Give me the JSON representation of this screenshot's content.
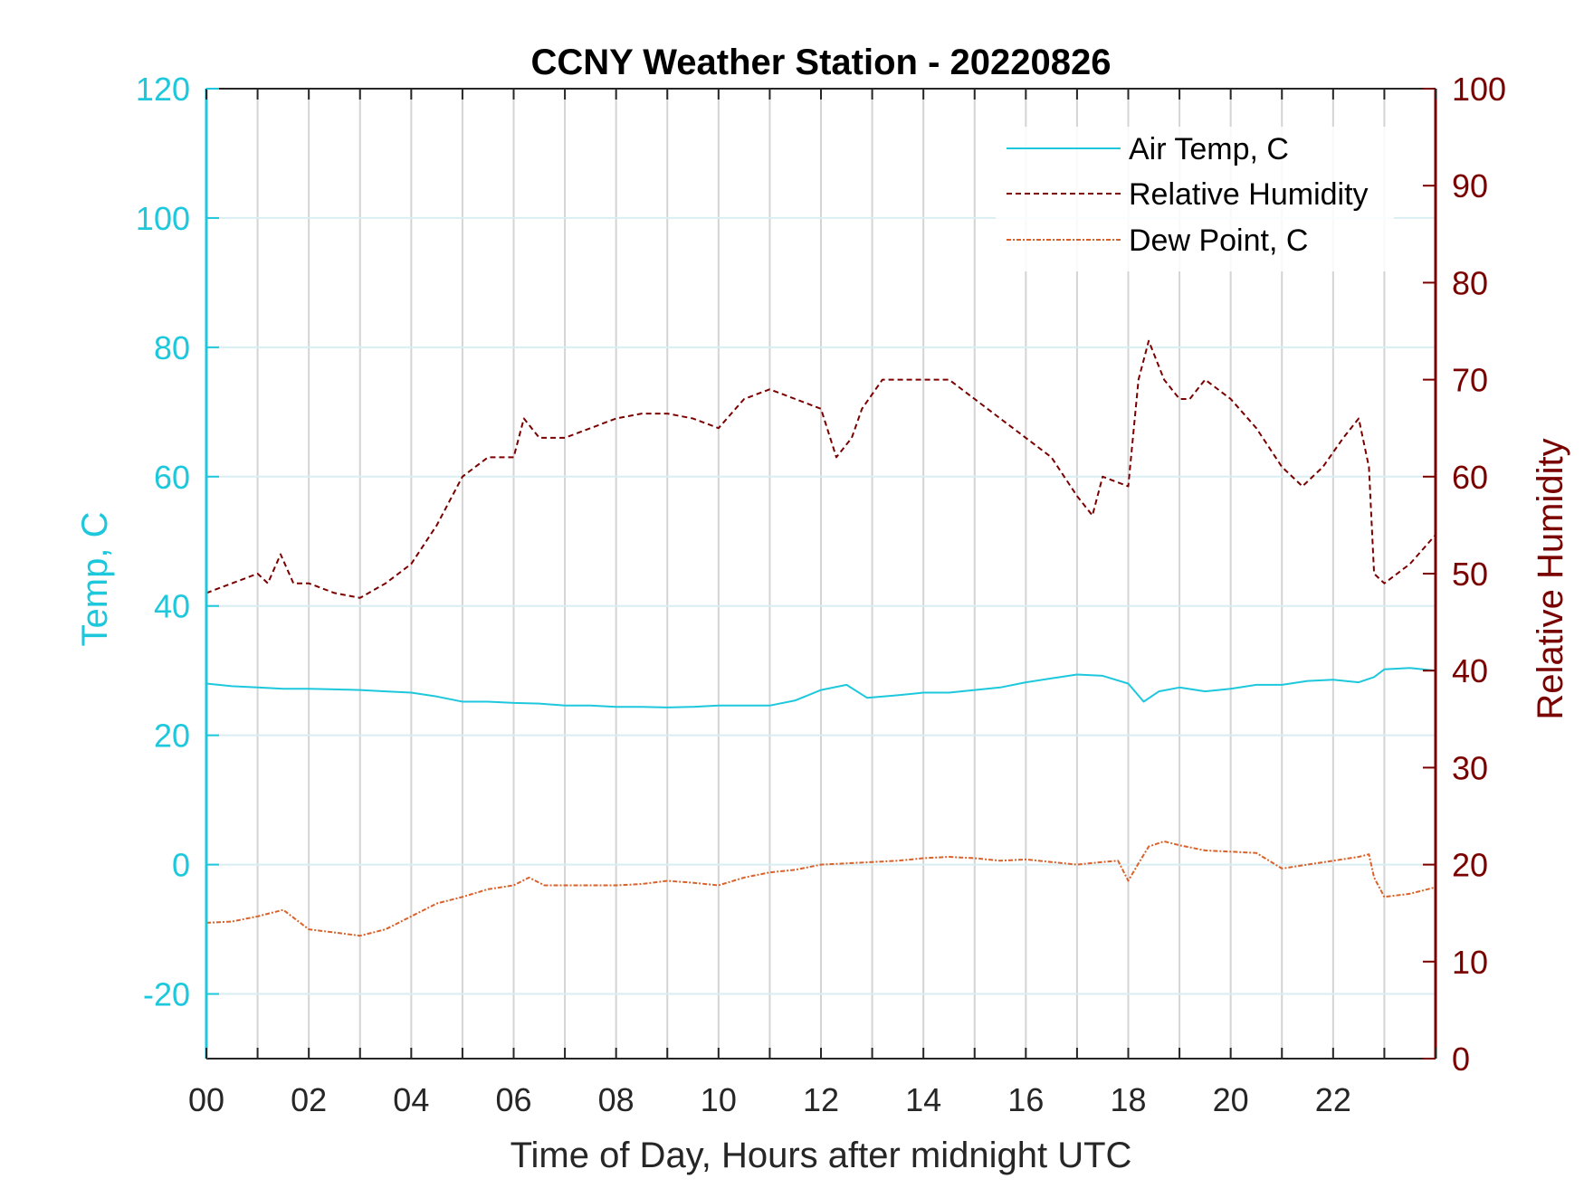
{
  "chart_data": {
    "type": "line",
    "title": "CCNY Weather Station - 20220826",
    "xlabel": "Time of Day, Hours after midnight UTC",
    "ylabel_left": "Temp, C",
    "ylabel_right": "Relative Humidity",
    "xlim": [
      0,
      24
    ],
    "ylim_left": [
      -30,
      120
    ],
    "ylim_right": [
      0,
      100
    ],
    "x_ticks": [
      0,
      2,
      4,
      6,
      8,
      10,
      12,
      14,
      16,
      18,
      20,
      22
    ],
    "x_tick_labels": [
      "00",
      "02",
      "04",
      "06",
      "08",
      "10",
      "12",
      "14",
      "16",
      "18",
      "20",
      "22"
    ],
    "y_left_ticks": [
      -20,
      0,
      20,
      40,
      60,
      80,
      100,
      120
    ],
    "y_left_tick_labels": [
      "-20",
      "0",
      "20",
      "40",
      "60",
      "80",
      "100",
      "120"
    ],
    "y_right_ticks": [
      0,
      10,
      20,
      30,
      40,
      50,
      60,
      70,
      80,
      90,
      100
    ],
    "y_right_tick_labels": [
      "0",
      "10",
      "20",
      "30",
      "40",
      "50",
      "60",
      "70",
      "80",
      "90",
      "100"
    ],
    "grid": true,
    "legend_position": "top-right",
    "colors": {
      "left_axis": "#1ec8dc",
      "right_axis": "#7a0000",
      "air_temp": "#1ec8dc",
      "rel_humidity": "#7a0000",
      "dew_point": "#d9622a",
      "grid": "#d4d4d4",
      "frame": "#262626"
    },
    "series": [
      {
        "name": "Air Temp, C",
        "axis": "left",
        "style": "solid",
        "x": [
          0,
          0.5,
          1,
          1.5,
          2,
          2.5,
          3,
          3.5,
          4,
          4.5,
          5,
          5.5,
          6,
          6.5,
          7,
          7.5,
          8,
          8.5,
          9,
          9.5,
          10,
          10.5,
          11,
          11.5,
          12,
          12.5,
          12.9,
          13.5,
          14,
          14.5,
          15,
          15.5,
          16,
          16.5,
          17,
          17.5,
          18,
          18.3,
          18.6,
          19,
          19.5,
          20,
          20.5,
          21,
          21.5,
          22,
          22.5,
          22.8,
          23,
          23.5,
          24
        ],
        "y": [
          28,
          27.6,
          27.4,
          27.2,
          27.2,
          27.1,
          27.0,
          26.8,
          26.6,
          26.0,
          25.2,
          25.2,
          25.0,
          24.9,
          24.6,
          24.6,
          24.4,
          24.4,
          24.3,
          24.4,
          24.6,
          24.6,
          24.6,
          25.4,
          27.0,
          27.8,
          25.8,
          26.2,
          26.6,
          26.6,
          27.0,
          27.4,
          28.2,
          28.8,
          29.4,
          29.2,
          28.0,
          25.2,
          26.8,
          27.4,
          26.8,
          27.2,
          27.8,
          27.8,
          28.4,
          28.6,
          28.2,
          29.0,
          30.2,
          30.4,
          30.0
        ]
      },
      {
        "name": "Relative Humidity",
        "axis": "right",
        "style": "dashed",
        "x": [
          0,
          0.5,
          1,
          1.2,
          1.45,
          1.7,
          2,
          2.5,
          3,
          3.5,
          4,
          4.5,
          5,
          5.5,
          6,
          6.2,
          6.5,
          7,
          7.5,
          8,
          8.5,
          9,
          9.5,
          10,
          10.5,
          11,
          11.5,
          12,
          12.3,
          12.6,
          12.8,
          13.2,
          13.5,
          14,
          14.5,
          15,
          15.5,
          16,
          16.5,
          17,
          17.3,
          17.5,
          18,
          18.2,
          18.4,
          18.7,
          19,
          19.2,
          19.5,
          20,
          20.5,
          21,
          21.4,
          21.8,
          22.2,
          22.5,
          22.7,
          22.8,
          23,
          23.5,
          24
        ],
        "y": [
          48,
          49,
          50,
          49,
          52,
          49,
          49,
          48,
          47.5,
          49,
          51,
          55,
          60,
          62,
          62,
          66,
          64,
          64,
          65,
          66,
          66.5,
          66.5,
          66,
          65,
          68,
          69,
          68,
          67,
          62,
          64,
          67,
          70,
          70,
          70,
          70,
          68,
          66,
          64,
          62,
          58,
          56,
          60,
          59,
          70,
          74,
          70,
          68,
          68,
          70,
          68,
          65,
          61,
          59,
          61,
          64,
          66,
          61,
          50,
          49,
          51,
          54
        ]
      },
      {
        "name": "Dew Point, C",
        "axis": "left",
        "style": "dash-dot",
        "x": [
          0,
          0.5,
          1,
          1.5,
          2,
          2.5,
          3,
          3.5,
          4,
          4.5,
          5,
          5.5,
          6,
          6.3,
          6.6,
          7,
          7.5,
          8,
          8.5,
          9,
          9.5,
          10,
          10.5,
          11,
          11.5,
          12,
          12.5,
          13,
          13.5,
          14,
          14.5,
          15,
          15.5,
          16,
          16.5,
          17,
          17.5,
          17.8,
          18,
          18.2,
          18.4,
          18.7,
          19,
          19.5,
          20,
          20.5,
          21,
          21.5,
          22,
          22.5,
          22.7,
          22.8,
          23,
          23.5,
          24
        ],
        "y": [
          -9,
          -8.8,
          -8,
          -7,
          -10,
          -10.5,
          -11,
          -10,
          -8,
          -6,
          -5,
          -3.8,
          -3.2,
          -2,
          -3.2,
          -3.2,
          -3.2,
          -3.2,
          -3.0,
          -2.5,
          -2.8,
          -3.2,
          -2,
          -1.2,
          -0.8,
          0,
          0.2,
          0.4,
          0.6,
          1.0,
          1.2,
          1.0,
          0.6,
          0.8,
          0.4,
          0,
          0.4,
          0.6,
          -2.5,
          0.2,
          2.8,
          3.6,
          3,
          2.2,
          2,
          1.8,
          -0.6,
          0,
          0.6,
          1.2,
          1.6,
          -2,
          -5,
          -4.5,
          -3.5
        ]
      }
    ]
  }
}
